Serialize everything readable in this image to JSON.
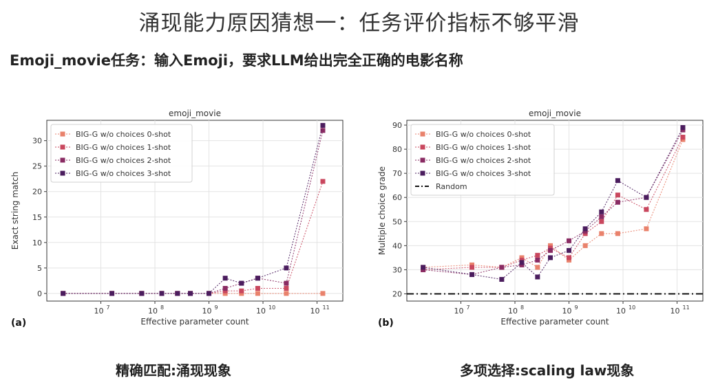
{
  "slide": {
    "title": "涌现能力原因猜想一：任务评价指标不够平滑",
    "subtitle": "Emoji_movie任务：输入Emoji，要求LLM给出完全正确的电影名称",
    "caption_left": "精确匹配:涌现现象",
    "caption_right": "多项选择:scaling law现象"
  },
  "chart_data": [
    {
      "type": "line",
      "panel_label": "(a)",
      "title": "emoji_movie",
      "xlabel": "Effective parameter count",
      "ylabel": "Exact string match",
      "xscale": "log",
      "xlim": [
        1000000,
        300000000000
      ],
      "ylim": [
        -1.5,
        34
      ],
      "x_ticks": [
        10000000,
        100000000,
        1000000000,
        10000000000,
        100000000000
      ],
      "x_tick_labels": [
        [
          "10",
          "7"
        ],
        [
          "10",
          "8"
        ],
        [
          "10",
          "9"
        ],
        [
          "10",
          "10"
        ],
        [
          "10",
          "11"
        ]
      ],
      "y_ticks": [
        0,
        5,
        10,
        15,
        20,
        25,
        30
      ],
      "grid": true,
      "legend_position": "top-left",
      "x": [
        2000000,
        16000000,
        57000000,
        134000000,
        262000000,
        453000000,
        1000000000,
        2000000000,
        4000000000,
        8000000000,
        27000000000,
        128000000000
      ],
      "series": [
        {
          "name": "BIG-G w/o choices 0-shot",
          "color": "#e9826c",
          "values": [
            0,
            0,
            0,
            0,
            0,
            0,
            0,
            0,
            0,
            0,
            0,
            0
          ]
        },
        {
          "name": "BIG-G w/o choices 1-shot",
          "color": "#c9475e",
          "values": [
            0,
            0,
            0,
            0,
            0,
            0,
            0,
            0.5,
            0.5,
            1,
            1,
            22
          ]
        },
        {
          "name": "BIG-G w/o choices 2-shot",
          "color": "#8a2b63",
          "values": [
            0,
            0,
            0,
            0,
            0,
            0,
            0,
            1,
            2,
            3,
            2,
            32
          ]
        },
        {
          "name": "BIG-G w/o choices 3-shot",
          "color": "#4b1d5e",
          "values": [
            0,
            0,
            0,
            0,
            0,
            0,
            0,
            3,
            2,
            3,
            5,
            33
          ]
        }
      ]
    },
    {
      "type": "line",
      "panel_label": "(b)",
      "title": "emoji_movie",
      "xlabel": "Effective parameter count",
      "ylabel": "Multiple choice grade",
      "xscale": "log",
      "xlim": [
        1000000,
        300000000000
      ],
      "ylim": [
        17,
        92
      ],
      "x_ticks": [
        10000000,
        100000000,
        1000000000,
        10000000000,
        100000000000
      ],
      "x_tick_labels": [
        [
          "10",
          "7"
        ],
        [
          "10",
          "8"
        ],
        [
          "10",
          "9"
        ],
        [
          "10",
          "10"
        ],
        [
          "10",
          "11"
        ]
      ],
      "y_ticks": [
        20,
        30,
        40,
        50,
        60,
        70,
        80,
        90
      ],
      "grid": true,
      "legend_position": "top-left",
      "random_baseline": {
        "name": "Random",
        "value": 20
      },
      "x": [
        2000000,
        16000000,
        57000000,
        134000000,
        262000000,
        453000000,
        1000000000,
        2000000000,
        4000000000,
        8000000000,
        27000000000,
        128000000000
      ],
      "series": [
        {
          "name": "BIG-G w/o choices 0-shot",
          "color": "#e9826c",
          "values": [
            31,
            32,
            31,
            35,
            31,
            40,
            34,
            40,
            45,
            45,
            47,
            84
          ]
        },
        {
          "name": "BIG-G w/o choices 1-shot",
          "color": "#c9475e",
          "values": [
            30,
            31,
            31,
            34,
            36,
            39,
            35,
            45,
            50,
            61,
            55,
            85
          ]
        },
        {
          "name": "BIG-G w/o choices 2-shot",
          "color": "#8a2b63",
          "values": [
            30,
            28,
            31,
            32,
            34,
            38,
            42,
            46,
            52,
            58,
            60,
            88
          ]
        },
        {
          "name": "BIG-G w/o choices 3-shot",
          "color": "#4b1d5e",
          "values": [
            31,
            28,
            26,
            33,
            27,
            35,
            38,
            47,
            54,
            67,
            60,
            89
          ]
        }
      ]
    }
  ]
}
